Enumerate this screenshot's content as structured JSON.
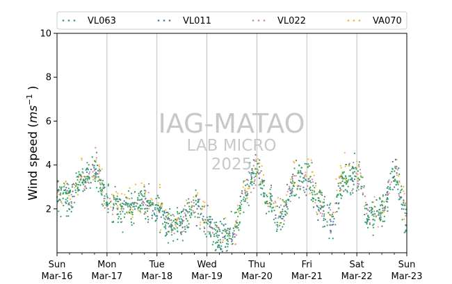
{
  "chart_data": {
    "type": "scatter",
    "ylabel_prefix": "Wind speed (",
    "ylabel_unit": "ms",
    "ylabel_sup": "−1",
    "ylabel_suffix": " )",
    "ylim": [
      0,
      10
    ],
    "yticks": [
      "2",
      "4",
      "6",
      "8",
      "10"
    ],
    "xlim": [
      "2025-03-16",
      "2025-03-23"
    ],
    "xticks": [
      {
        "day": "Sun",
        "date": "Mar-16"
      },
      {
        "day": "Mon",
        "date": "Mar-17"
      },
      {
        "day": "Tue",
        "date": "Mar-18"
      },
      {
        "day": "Wed",
        "date": "Mar-19"
      },
      {
        "day": "Thu",
        "date": "Mar-20"
      },
      {
        "day": "Fri",
        "date": "Mar-21"
      },
      {
        "day": "Sat",
        "date": "Mar-22"
      },
      {
        "day": "Sun",
        "date": "Mar-23"
      }
    ],
    "grid": "x-major",
    "legend_position": "top",
    "watermark": {
      "line1": "IAG-MATAO",
      "line2": "LAB MICRO",
      "line3": "2025"
    },
    "series": [
      {
        "name": "VL063",
        "color": "#2ca25f"
      },
      {
        "name": "VL011",
        "color": "#4a6fa5"
      },
      {
        "name": "VL022",
        "color": "#c983a6"
      },
      {
        "name": "VA070",
        "color": "#f5b730"
      }
    ],
    "hourly_profile": {
      "hours": [
        "2025-03-16 00h",
        "2025-03-16 06h",
        "2025-03-16 12h",
        "2025-03-16 18h",
        "2025-03-17 00h",
        "2025-03-17 06h",
        "2025-03-17 12h",
        "2025-03-17 18h",
        "2025-03-18 00h",
        "2025-03-18 06h",
        "2025-03-18 12h",
        "2025-03-18 18h",
        "2025-03-19 00h",
        "2025-03-19 06h",
        "2025-03-19 12h",
        "2025-03-19 18h",
        "2025-03-20 00h",
        "2025-03-20 06h",
        "2025-03-20 12h",
        "2025-03-20 18h",
        "2025-03-21 00h",
        "2025-03-21 06h",
        "2025-03-21 12h",
        "2025-03-21 18h",
        "2025-03-22 00h",
        "2025-03-22 06h",
        "2025-03-22 12h",
        "2025-03-22 18h",
        "2025-03-23 00h"
      ],
      "wind_speed": [
        2.6,
        2.4,
        3.3,
        3.8,
        2.4,
        1.9,
        2.1,
        2.4,
        2.0,
        1.2,
        1.4,
        2.2,
        1.4,
        0.6,
        0.8,
        2.6,
        3.8,
        2.3,
        1.6,
        3.1,
        3.5,
        2.2,
        1.6,
        3.4,
        3.6,
        1.7,
        1.9,
        3.6,
        1.6
      ]
    }
  }
}
